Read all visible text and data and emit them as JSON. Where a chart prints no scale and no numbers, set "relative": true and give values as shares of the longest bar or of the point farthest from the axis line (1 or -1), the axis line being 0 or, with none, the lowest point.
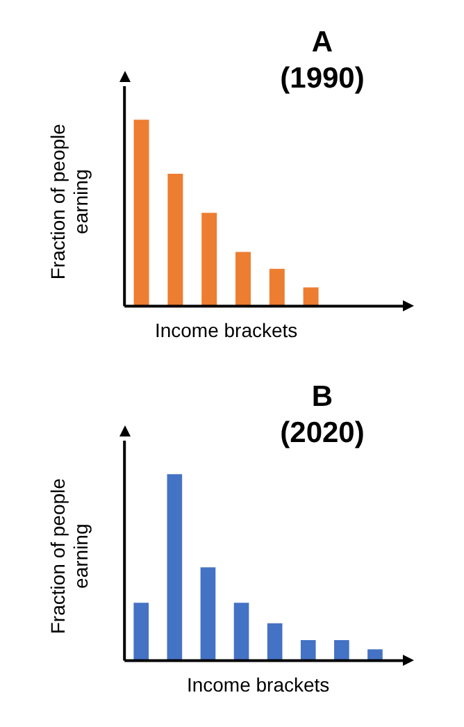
{
  "chart_data": [
    {
      "type": "bar",
      "title": "A\n(1990)",
      "xlabel": "Income brackets",
      "ylabel": "Fraction of people earning",
      "relative": true,
      "categories": [
        null,
        null,
        null,
        null,
        null,
        null
      ],
      "series": [
        {
          "color": "#ed7d31",
          "values": [
            1,
            0.71,
            0.5,
            0.29,
            0.2,
            0.1
          ]
        }
      ],
      "grid": false,
      "legend": false
    },
    {
      "type": "bar",
      "title": "B\n(2020)",
      "xlabel": "Income brackets",
      "ylabel": "Fraction of people earning",
      "relative": true,
      "categories": [
        null,
        null,
        null,
        null,
        null,
        null,
        null,
        null
      ],
      "series": [
        {
          "color": "#4472c4",
          "values": [
            0.31,
            1,
            0.5,
            0.31,
            0.2,
            0.11,
            0.11,
            0.06
          ]
        }
      ],
      "grid": false,
      "legend": false
    }
  ]
}
